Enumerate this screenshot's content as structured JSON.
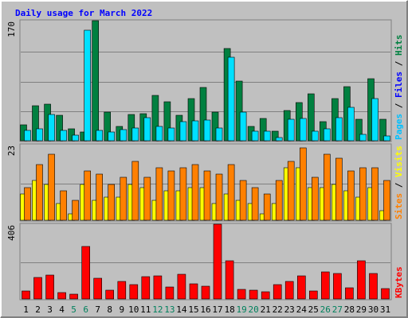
{
  "colors": {
    "background": "#c0c0c0",
    "frame_light": "#ffffff",
    "frame_dark": "#808080",
    "title": "#0000ff",
    "grid": "#808080",
    "label": "#000000",
    "weekend_label": "#00805c",
    "hits": "#008040",
    "files": "#00e0ff",
    "pages": "#00c0ff",
    "visits": "#ffff00",
    "sites": "#ff8000",
    "kbytes": "#ff0000"
  },
  "chart_data": {
    "type": "bar",
    "title": "Daily usage for March 2022",
    "categories": [
      "1",
      "2",
      "3",
      "4",
      "5",
      "6",
      "7",
      "8",
      "9",
      "10",
      "11",
      "12",
      "13",
      "14",
      "15",
      "16",
      "17",
      "18",
      "19",
      "20",
      "21",
      "22",
      "23",
      "24",
      "25",
      "26",
      "27",
      "28",
      "29",
      "30",
      "31"
    ],
    "weekend_days": [
      "5",
      "6",
      "12",
      "13",
      "19",
      "20",
      "26",
      "27"
    ],
    "panels": [
      {
        "id": "hits",
        "max_label": "170",
        "ylim": [
          0,
          170
        ],
        "legend": [
          {
            "text": "Pages",
            "color": "#00c0ff"
          },
          {
            "text": " / ",
            "color": "#000000"
          },
          {
            "text": "Files",
            "color": "#0000ff"
          },
          {
            "text": " / ",
            "color": "#000000"
          },
          {
            "text": "Hits",
            "color": "#008040"
          }
        ],
        "series": [
          {
            "name": "Hits",
            "color": "#008040",
            "values": [
              22,
              49,
              52,
              36,
              17,
              12,
              170,
              41,
              20,
              37,
              38,
              64,
              55,
              36,
              60,
              75,
              41,
              131,
              84,
              20,
              32,
              13,
              43,
              54,
              66,
              27,
              60,
              76,
              30,
              88,
              30
            ]
          },
          {
            "name": "Files",
            "color": "#00e0ff",
            "values": [
              15,
              17,
              37,
              15,
              8,
              156,
              15,
              12,
              16,
              18,
              33,
              20,
              18,
              27,
              28,
              29,
              18,
              118,
              40,
              13,
              14,
              5,
              30,
              32,
              14,
              17,
              33,
              47,
              9,
              60,
              7
            ]
          },
          {
            "name": "Pages",
            "color": "#00c0ff",
            "values": [
              0,
              0,
              0,
              0,
              0,
              0,
              0,
              0,
              0,
              0,
              0,
              0,
              0,
              0,
              0,
              0,
              0,
              0,
              0,
              0,
              0,
              0,
              0,
              0,
              0,
              0,
              0,
              0,
              0,
              0,
              0
            ]
          }
        ]
      },
      {
        "id": "visits",
        "max_label": "23",
        "ylim": [
          0,
          23
        ],
        "legend": [
          {
            "text": "Sites",
            "color": "#ff8000"
          },
          {
            "text": " / ",
            "color": "#000000"
          },
          {
            "text": "Visits",
            "color": "#ffff00"
          }
        ],
        "series": [
          {
            "name": "Visits",
            "color": "#ffff00",
            "values": [
              8,
              12,
              11,
              5,
              2,
              11,
              6,
              7,
              7,
              11,
              10,
              6,
              9,
              9,
              10,
              10,
              5,
              8,
              6,
              5,
              2,
              5,
              16,
              16,
              10,
              10,
              11,
              9,
              7,
              10,
              3
            ]
          },
          {
            "name": "Sites",
            "color": "#ff8000",
            "values": [
              10,
              17,
              20,
              9,
              6,
              15,
              14,
              11,
              13,
              18,
              13,
              16,
              15,
              16,
              17,
              15,
              14,
              17,
              12,
              10,
              8,
              12,
              18,
              22,
              13,
              20,
              19,
              15,
              16,
              16,
              12
            ]
          }
        ]
      },
      {
        "id": "kbytes",
        "max_label": "406",
        "ylim": [
          0,
          406
        ],
        "legend": [
          {
            "text": "KBytes",
            "color": "#ff0000"
          }
        ],
        "series": [
          {
            "name": "KBytes",
            "color": "#ff0000",
            "values": [
              45,
              118,
              130,
              34,
              28,
              284,
              113,
              47,
              95,
              78,
              122,
              127,
              64,
              136,
              83,
              68,
              406,
              208,
              53,
              46,
              38,
              76,
              93,
              124,
              45,
              147,
              138,
              61,
              207,
              138,
              56
            ]
          }
        ]
      }
    ]
  }
}
